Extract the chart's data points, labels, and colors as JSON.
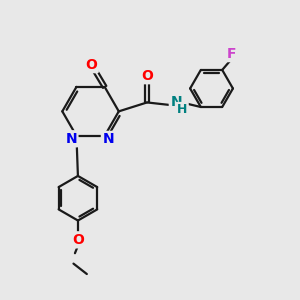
{
  "bg_color": "#e8e8e8",
  "bond_color": "#1a1a1a",
  "bond_width": 1.6,
  "atom_colors": {
    "N": "#0000ee",
    "O": "#ff0000",
    "NH": "#008080",
    "F": "#cc44cc"
  },
  "font_size": 9,
  "fig_size": [
    3.0,
    3.0
  ],
  "dpi": 100
}
